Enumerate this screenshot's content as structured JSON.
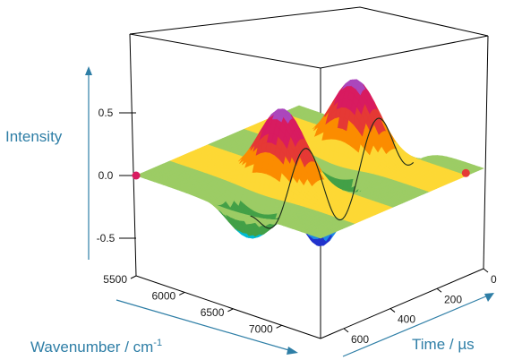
{
  "chart_data": {
    "type": "surface",
    "title": "",
    "zlabel": "Intensity",
    "xlabel_main": "Wavenumber / cm",
    "xlabel_sup": "-1",
    "ylabel": "Time / µs",
    "z_ticks": [
      "0.5",
      "0.0",
      "-0.5"
    ],
    "z_range": [
      -0.7,
      0.7
    ],
    "wavenumber_ticks": [
      "5500",
      "6000",
      "6500",
      "7000"
    ],
    "wavenumber_range": [
      5500,
      7400
    ],
    "time_ticks": [
      "0",
      "200",
      "400",
      "600"
    ],
    "time_range": [
      0,
      700
    ],
    "description_series": [
      {
        "name": "oscillation",
        "peak_times_us": [
          150,
          310,
          470
        ],
        "trough_times_us": [
          60,
          230,
          390,
          560
        ],
        "center_wavenumber": 6450,
        "amplitude": 0.62
      }
    ],
    "markers": [
      {
        "color": "#d81b60",
        "wavenumber": 5500,
        "time": 700
      },
      {
        "color": "#e53935",
        "wavenumber": 7400,
        "time": 60
      }
    ],
    "colormap": [
      "#2233cc",
      "#1e88e5",
      "#00bcd4",
      "#43a047",
      "#9ccc65",
      "#fdd835",
      "#fb8c00",
      "#e53935",
      "#d81b60",
      "#ab47bc"
    ]
  }
}
